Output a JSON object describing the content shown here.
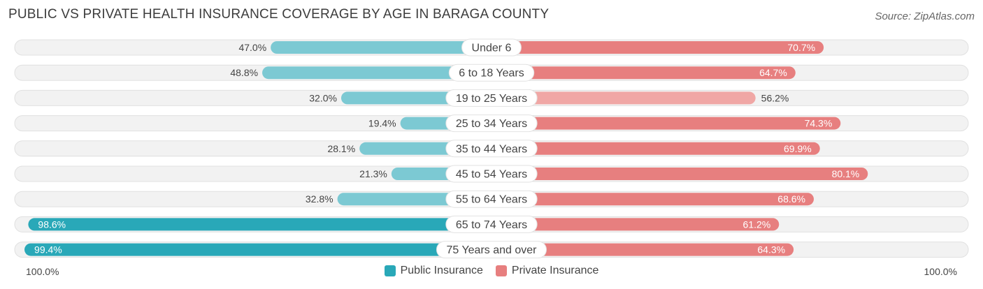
{
  "source": "Source: ZipAtlas.com",
  "colors": {
    "public": "#29a8b8",
    "public_light": "#7cc9d3",
    "private": "#e77f7f",
    "private_light": "#f0a7a5",
    "track": "#f2f2f2"
  },
  "chart_data": {
    "type": "bar",
    "orientation": "horizontal-diverging",
    "title": "PUBLIC VS PRIVATE HEALTH INSURANCE COVERAGE BY AGE IN BARAGA COUNTY",
    "categories": [
      "Under 6",
      "6 to 18 Years",
      "19 to 25 Years",
      "25 to 34 Years",
      "35 to 44 Years",
      "45 to 54 Years",
      "55 to 64 Years",
      "65 to 74 Years",
      "75 Years and over"
    ],
    "series": [
      {
        "name": "Public Insurance",
        "values": [
          47.0,
          48.8,
          32.0,
          19.4,
          28.1,
          21.3,
          32.8,
          98.6,
          99.4
        ],
        "labels": [
          "47.0%",
          "48.8%",
          "32.0%",
          "19.4%",
          "28.1%",
          "21.3%",
          "32.8%",
          "98.6%",
          "99.4%"
        ]
      },
      {
        "name": "Private Insurance",
        "values": [
          70.7,
          64.7,
          56.2,
          74.3,
          69.9,
          80.1,
          68.6,
          61.2,
          64.3
        ],
        "labels": [
          "70.7%",
          "64.7%",
          "56.2%",
          "74.3%",
          "69.9%",
          "80.1%",
          "68.6%",
          "61.2%",
          "64.3%"
        ]
      }
    ],
    "xlim": [
      0,
      100
    ],
    "axis_left_label": "100.0%",
    "axis_right_label": "100.0%",
    "legend_position": "bottom-center"
  }
}
